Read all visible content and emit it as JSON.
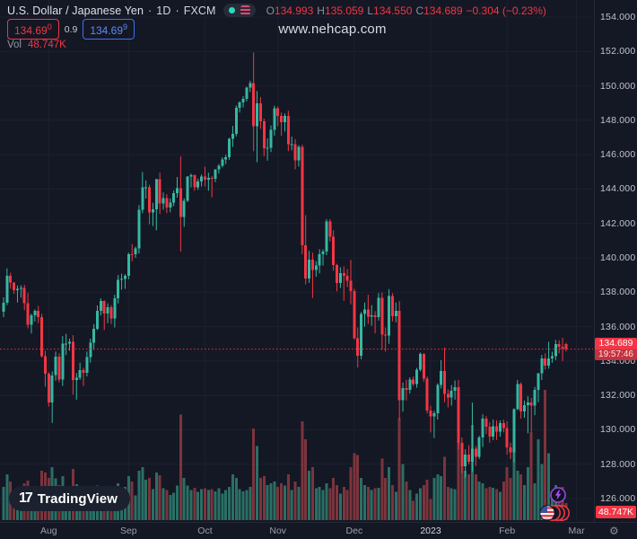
{
  "header": {
    "symbol": "U.S. Dollar / Japanese Yen",
    "sep": "·",
    "interval": "1D",
    "exchange": "FXCM",
    "ohlc": {
      "o_label": "O",
      "o_value": "134.993",
      "h_label": "H",
      "h_value": "135.059",
      "l_label": "L",
      "l_value": "134.550",
      "c_label": "C",
      "c_value": "134.689",
      "change": "−0.304 (−0.23%)"
    },
    "bid": "134.69",
    "bid_sup": "0",
    "spread": "0.9",
    "ask": "134.69",
    "ask_sup": "9",
    "vol_label": "Vol",
    "vol_value": "48.747K"
  },
  "watermark": "www.nehcap.com",
  "logo": {
    "mark": "17",
    "brand": "TradingView"
  },
  "axis": {
    "price_label": "134.689",
    "countdown": "19:57:46",
    "volume_label": "48.747K",
    "gear": "⚙"
  },
  "colors": {
    "background": "#141824",
    "grid": "#1c2130",
    "up": "#35b8a2",
    "down": "#f23645",
    "vol_up": "#2a6f65",
    "vol_down": "#7c343c",
    "accent_red": "#f23645",
    "accent_blue": "#3b72f6",
    "countdown_bg": "#c3323e"
  },
  "chart_data": {
    "type": "candlestick",
    "title": "U.S. Dollar / Japanese Yen · 1D · FXCM",
    "current_price": 134.689,
    "current_volume_k": 48.747,
    "price_axis": {
      "min": 126,
      "max": 154,
      "step": 2,
      "tick_labels": [
        "154.000",
        "152.000",
        "150.000",
        "148.000",
        "146.000",
        "144.000",
        "142.000",
        "140.000",
        "138.000",
        "136.000",
        "134.000",
        "132.000",
        "130.000",
        "128.000",
        "126.000"
      ]
    },
    "time_axis_ticks": [
      {
        "label": "Aug",
        "i": 13
      },
      {
        "label": "Sep",
        "i": 36
      },
      {
        "label": "Oct",
        "i": 58
      },
      {
        "label": "Nov",
        "i": 79
      },
      {
        "label": "Dec",
        "i": 101
      },
      {
        "label": "2023",
        "i": 123
      },
      {
        "label": "Feb",
        "i": 145
      },
      {
        "label": "Mar",
        "i": 165
      }
    ],
    "candles_format": [
      "open",
      "high",
      "low",
      "close",
      "volume_k"
    ],
    "candles": [
      [
        136.87,
        137.7,
        136.55,
        137.39,
        95
      ],
      [
        137.39,
        139.39,
        137.25,
        138.95,
        130
      ],
      [
        138.95,
        139.13,
        138.2,
        138.57,
        110
      ],
      [
        138.57,
        138.58,
        137.9,
        138.13,
        85
      ],
      [
        138.13,
        138.39,
        137.4,
        138.2,
        90
      ],
      [
        138.2,
        138.4,
        137.68,
        138.25,
        88
      ],
      [
        138.25,
        138.43,
        136.95,
        137.36,
        105
      ],
      [
        137.36,
        137.95,
        135.9,
        136.12,
        112
      ],
      [
        136.12,
        136.75,
        135.6,
        136.66,
        84
      ],
      [
        136.66,
        137,
        136.3,
        136.91,
        78
      ],
      [
        136.91,
        137.2,
        136.2,
        136.56,
        95
      ],
      [
        136.56,
        136.75,
        134.2,
        134.27,
        140
      ],
      [
        134.27,
        134.6,
        132.5,
        133.27,
        135
      ],
      [
        133.27,
        133.35,
        131.35,
        131.6,
        120
      ],
      [
        131.6,
        133.4,
        130.4,
        133.17,
        150
      ],
      [
        133.17,
        134.55,
        132.85,
        134.25,
        118
      ],
      [
        134.25,
        134.45,
        132.76,
        132.92,
        100
      ],
      [
        132.92,
        135.45,
        132.55,
        135.01,
        125
      ],
      [
        135.01,
        135.58,
        134.35,
        135.01,
        82
      ],
      [
        135.01,
        135.3,
        134.6,
        135.12,
        76
      ],
      [
        135.12,
        135.5,
        132.05,
        132.9,
        145
      ],
      [
        132.9,
        133.3,
        131.75,
        133.02,
        102
      ],
      [
        133.02,
        133.9,
        132.9,
        133.47,
        80
      ],
      [
        133.47,
        133.6,
        132.55,
        133.31,
        85
      ],
      [
        133.31,
        134.55,
        133.1,
        134.24,
        88
      ],
      [
        134.24,
        135.3,
        133.9,
        135.07,
        92
      ],
      [
        135.07,
        136.15,
        134.65,
        135.88,
        90
      ],
      [
        135.88,
        137.23,
        135.8,
        136.92,
        98
      ],
      [
        136.92,
        137.65,
        136.65,
        137.49,
        86
      ],
      [
        137.49,
        137.52,
        135.8,
        136.75,
        95
      ],
      [
        136.75,
        137.35,
        136.2,
        137.12,
        82
      ],
      [
        137.12,
        137.25,
        136.15,
        136.48,
        80
      ],
      [
        136.48,
        137.85,
        135.95,
        137.64,
        96
      ],
      [
        137.64,
        139,
        137.35,
        138.73,
        105
      ],
      [
        138.73,
        139.08,
        138.15,
        138.77,
        92
      ],
      [
        138.77,
        139.05,
        138.2,
        138.96,
        94
      ],
      [
        138.96,
        140.3,
        138.75,
        140.21,
        125
      ],
      [
        140.21,
        140.8,
        139.8,
        140.2,
        110
      ],
      [
        140.2,
        140.65,
        140,
        140.56,
        70
      ],
      [
        140.56,
        143.07,
        140.25,
        142.8,
        140
      ],
      [
        142.8,
        144.99,
        142.6,
        144.09,
        150
      ],
      [
        144.09,
        144.5,
        143.45,
        144.1,
        115
      ],
      [
        144.1,
        144.25,
        141.95,
        142.65,
        120
      ],
      [
        142.65,
        143.2,
        141.85,
        142.83,
        88
      ],
      [
        142.83,
        144.6,
        141.6,
        144.57,
        135
      ],
      [
        144.57,
        144.95,
        142.55,
        143.16,
        128
      ],
      [
        143.16,
        143.8,
        142.8,
        143.47,
        90
      ],
      [
        143.47,
        143.7,
        142.6,
        142.92,
        85
      ],
      [
        142.92,
        143.45,
        142.65,
        143.2,
        72
      ],
      [
        143.2,
        143.92,
        143,
        143.75,
        78
      ],
      [
        143.75,
        144.7,
        143.5,
        144.06,
        98
      ],
      [
        144.06,
        145.9,
        140.36,
        142.39,
        300
      ],
      [
        142.39,
        143.46,
        141.8,
        143.31,
        120
      ],
      [
        143.31,
        144.75,
        143.25,
        144.74,
        98
      ],
      [
        144.74,
        144.9,
        144.1,
        144.81,
        85
      ],
      [
        144.81,
        144.85,
        143.9,
        144.11,
        92
      ],
      [
        144.11,
        144.6,
        143.95,
        144.45,
        80
      ],
      [
        144.45,
        144.85,
        144.15,
        144.74,
        88
      ],
      [
        144.74,
        145.3,
        144.15,
        144.55,
        90
      ],
      [
        144.55,
        144.95,
        143.9,
        144.66,
        85
      ],
      [
        144.66,
        144.75,
        143.52,
        144.61,
        88
      ],
      [
        144.61,
        145.15,
        144.4,
        145.14,
        82
      ],
      [
        145.14,
        145.45,
        144.9,
        145.35,
        90
      ],
      [
        145.35,
        145.85,
        145.25,
        145.72,
        75
      ],
      [
        145.72,
        146,
        145.45,
        145.86,
        85
      ],
      [
        145.86,
        146.98,
        145.7,
        146.91,
        95
      ],
      [
        146.91,
        147.67,
        146.45,
        147.22,
        130
      ],
      [
        147.22,
        148.86,
        147.05,
        148.73,
        120
      ],
      [
        148.73,
        149.1,
        148.45,
        149.05,
        88
      ],
      [
        149.05,
        149.4,
        148.75,
        149.25,
        82
      ],
      [
        149.25,
        149.95,
        149.1,
        149.9,
        86
      ],
      [
        149.9,
        150.3,
        149.65,
        150.15,
        95
      ],
      [
        150.15,
        151.94,
        146.2,
        147.65,
        260
      ],
      [
        147.65,
        149.7,
        145.56,
        148.99,
        210
      ],
      [
        148.99,
        149.35,
        147.5,
        147.93,
        120
      ],
      [
        147.93,
        148.1,
        145.9,
        146.37,
        125
      ],
      [
        146.37,
        146.95,
        145.65,
        146.4,
        100
      ],
      [
        146.4,
        147.7,
        146.15,
        147.45,
        105
      ],
      [
        147.45,
        148.85,
        147.1,
        148.71,
        110
      ],
      [
        148.71,
        148.8,
        147.65,
        148.25,
        95
      ],
      [
        148.25,
        148.45,
        147.1,
        147.89,
        105
      ],
      [
        147.89,
        148.4,
        147.35,
        148.26,
        98
      ],
      [
        148.26,
        148.55,
        146.2,
        146.62,
        130
      ],
      [
        146.62,
        147.05,
        146.25,
        146.62,
        85
      ],
      [
        146.62,
        146.9,
        145.15,
        145.67,
        110
      ],
      [
        145.67,
        146.55,
        145.3,
        146.44,
        95
      ],
      [
        146.44,
        146.58,
        140.2,
        140.72,
        280
      ],
      [
        140.72,
        142.48,
        138.46,
        138.81,
        230
      ],
      [
        138.81,
        140.4,
        138.55,
        139.89,
        140
      ],
      [
        139.89,
        140.3,
        137.67,
        139.29,
        150
      ],
      [
        139.29,
        139.8,
        138.9,
        139.55,
        90
      ],
      [
        139.55,
        140.5,
        139.1,
        140.2,
        95
      ],
      [
        140.2,
        140.49,
        139.55,
        140.37,
        85
      ],
      [
        140.37,
        142.25,
        140.15,
        142.12,
        105
      ],
      [
        142.12,
        142.25,
        140.95,
        141.24,
        90
      ],
      [
        141.24,
        141.6,
        139.25,
        139.58,
        120
      ],
      [
        139.58,
        139.65,
        138.05,
        138.53,
        100
      ],
      [
        138.53,
        139.45,
        138.25,
        139.1,
        75
      ],
      [
        139.1,
        139.5,
        137.5,
        138.95,
        95
      ],
      [
        138.95,
        139.35,
        138.3,
        138.67,
        85
      ],
      [
        138.67,
        139.88,
        137.3,
        138.07,
        150
      ],
      [
        138.07,
        138.2,
        135.25,
        135.33,
        190
      ],
      [
        135.33,
        135.95,
        133.62,
        134.31,
        185
      ],
      [
        134.31,
        136.85,
        134.1,
        136.73,
        120
      ],
      [
        136.73,
        137.4,
        136,
        137,
        100
      ],
      [
        137,
        137.85,
        136.15,
        136.59,
        95
      ],
      [
        136.59,
        137.25,
        136.05,
        136.65,
        85
      ],
      [
        136.65,
        136.9,
        135.6,
        136.56,
        90
      ],
      [
        136.56,
        137.95,
        136.35,
        137.67,
        92
      ],
      [
        137.67,
        137.99,
        134.65,
        135.54,
        175
      ],
      [
        135.54,
        135.95,
        134.55,
        135.47,
        120
      ],
      [
        135.47,
        138.18,
        135,
        137.77,
        150
      ],
      [
        137.77,
        137.95,
        136.3,
        136.6,
        100
      ],
      [
        136.6,
        137.4,
        136.25,
        136.92,
        80
      ],
      [
        136.92,
        137.48,
        130.57,
        131.71,
        290
      ],
      [
        131.71,
        132.75,
        131.05,
        132.43,
        160
      ],
      [
        132.43,
        132.9,
        131.7,
        132.33,
        110
      ],
      [
        132.33,
        133.05,
        132.1,
        132.91,
        85
      ],
      [
        132.91,
        133.1,
        132.55,
        132.65,
        55
      ],
      [
        132.65,
        133.6,
        132.45,
        133.49,
        75
      ],
      [
        133.49,
        134.5,
        133.4,
        134.4,
        90
      ],
      [
        134.4,
        134.45,
        132.8,
        132.97,
        100
      ],
      [
        132.97,
        133.1,
        130.95,
        131.12,
        115
      ],
      [
        131.12,
        131.4,
        129.85,
        130.77,
        60
      ],
      [
        130.77,
        131.1,
        129.52,
        130.96,
        120
      ],
      [
        130.96,
        132.7,
        130.6,
        132.62,
        130
      ],
      [
        132.62,
        134.05,
        132.4,
        133.41,
        125
      ],
      [
        133.41,
        134.78,
        131.6,
        132.08,
        180
      ],
      [
        132.08,
        132.35,
        131.3,
        131.87,
        95
      ],
      [
        131.87,
        132.6,
        131.4,
        132.27,
        90
      ],
      [
        132.27,
        132.87,
        131.75,
        132.47,
        88
      ],
      [
        132.47,
        132.9,
        128.87,
        129.25,
        250
      ],
      [
        129.25,
        129.55,
        127.46,
        127.87,
        190
      ],
      [
        127.87,
        128.87,
        127.23,
        128.55,
        140
      ],
      [
        128.55,
        129.1,
        127.99,
        128.13,
        130
      ],
      [
        128.13,
        131.58,
        127.57,
        128.9,
        270
      ],
      [
        128.9,
        129.05,
        127.9,
        128.43,
        130
      ],
      [
        128.43,
        129.65,
        128.3,
        129.56,
        110
      ],
      [
        129.56,
        130.9,
        129,
        130.65,
        105
      ],
      [
        130.65,
        130.8,
        129.75,
        130.17,
        90
      ],
      [
        130.17,
        130.45,
        129.25,
        129.61,
        95
      ],
      [
        129.61,
        130.6,
        129.4,
        130.21,
        92
      ],
      [
        130.21,
        130.55,
        129.4,
        129.88,
        88
      ],
      [
        129.88,
        130.55,
        129.6,
        130.4,
        80
      ],
      [
        130.4,
        130.6,
        129.85,
        130.09,
        110
      ],
      [
        130.09,
        130.5,
        128.55,
        128.98,
        150
      ],
      [
        128.98,
        129.25,
        128.3,
        128.68,
        120
      ],
      [
        128.68,
        131.25,
        128.1,
        131.19,
        200
      ],
      [
        131.19,
        132.9,
        131.15,
        132.65,
        140
      ],
      [
        132.65,
        132.75,
        130.65,
        131.06,
        130
      ],
      [
        131.06,
        131.7,
        130.7,
        131.44,
        100
      ],
      [
        131.44,
        131.95,
        129.8,
        131.58,
        150
      ],
      [
        131.58,
        131.85,
        129.88,
        131.4,
        250
      ],
      [
        131.4,
        132.5,
        130.85,
        132.32,
        105
      ],
      [
        132.32,
        133.3,
        131.6,
        133.28,
        230
      ],
      [
        133.28,
        134.36,
        132.9,
        134.16,
        160
      ],
      [
        134.16,
        134.45,
        133.5,
        133.72,
        370
      ],
      [
        133.72,
        135.12,
        133.55,
        134.15,
        190
      ],
      [
        134.15,
        134.55,
        133.9,
        134.29,
        70
      ],
      [
        134.29,
        135.23,
        134.05,
        134.98,
        100
      ],
      [
        134.98,
        135.2,
        134.45,
        134.84,
        85
      ],
      [
        134.84,
        135.35,
        134,
        134.73,
        95
      ],
      [
        134.993,
        135.059,
        134.55,
        134.689,
        48.747
      ]
    ]
  }
}
